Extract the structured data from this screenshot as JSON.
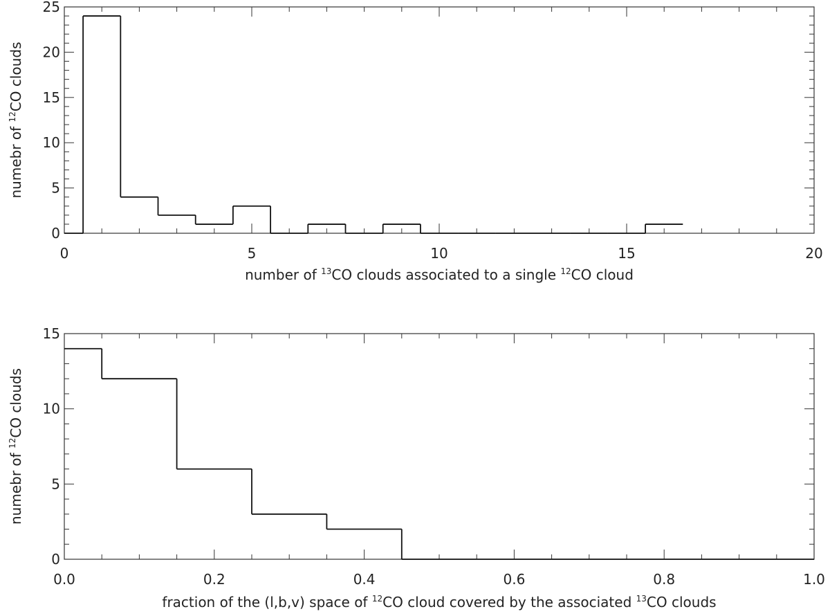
{
  "chart_data": [
    {
      "type": "histogram",
      "xlabel": {
        "parts": [
          {
            "t": "number of "
          },
          {
            "t": "13",
            "sup": true
          },
          {
            "t": "CO clouds associated to a single "
          },
          {
            "t": "12",
            "sup": true
          },
          {
            "t": "CO cloud"
          }
        ]
      },
      "ylabel": {
        "parts": [
          {
            "t": "numebr of "
          },
          {
            "t": "12",
            "sup": true
          },
          {
            "t": "CO clouds"
          }
        ]
      },
      "xlim": [
        0,
        20
      ],
      "ylim": [
        0,
        25
      ],
      "x_ticks": [
        0,
        5,
        10,
        15,
        20
      ],
      "y_ticks": [
        0,
        5,
        10,
        15,
        20,
        25
      ],
      "x_tick_labels": [
        "0",
        "5",
        "10",
        "15",
        "20"
      ],
      "y_tick_labels": [
        "0",
        "5",
        "10",
        "15",
        "20",
        "25"
      ],
      "x_minor_step": 1,
      "y_minor_step": 1,
      "bin_width": 1,
      "bin_centers": [
        0,
        1,
        2,
        3,
        4,
        5,
        6,
        7,
        8,
        9,
        10,
        11,
        12,
        13,
        14,
        15,
        16
      ],
      "values": [
        0,
        24,
        4,
        2,
        1,
        3,
        0,
        1,
        0,
        1,
        0,
        0,
        0,
        0,
        0,
        0,
        1
      ]
    },
    {
      "type": "histogram",
      "xlabel": {
        "parts": [
          {
            "t": "fraction of the (l,b,v) space of "
          },
          {
            "t": "12",
            "sup": true
          },
          {
            "t": "CO cloud covered by the associated "
          },
          {
            "t": "13",
            "sup": true
          },
          {
            "t": "CO clouds"
          }
        ]
      },
      "ylabel": {
        "parts": [
          {
            "t": "numebr of "
          },
          {
            "t": "12",
            "sup": true
          },
          {
            "t": "CO clouds"
          }
        ]
      },
      "xlim": [
        0,
        1
      ],
      "ylim": [
        0,
        15
      ],
      "x_ticks": [
        0.0,
        0.2,
        0.4,
        0.6,
        0.8,
        1.0
      ],
      "y_ticks": [
        0,
        5,
        10,
        15
      ],
      "x_tick_labels": [
        "0.0",
        "0.2",
        "0.4",
        "0.6",
        "0.8",
        "1.0"
      ],
      "y_tick_labels": [
        "0",
        "5",
        "10",
        "15"
      ],
      "x_minor_step": 0.05,
      "y_minor_step": 1,
      "bin_width": 0.1,
      "bin_centers": [
        0.0,
        0.1,
        0.2,
        0.3,
        0.4,
        0.5,
        0.6,
        0.7,
        0.8,
        0.9,
        1.0
      ],
      "values": [
        14,
        12,
        6,
        3,
        2,
        0,
        0,
        0,
        0,
        0,
        0
      ]
    }
  ]
}
